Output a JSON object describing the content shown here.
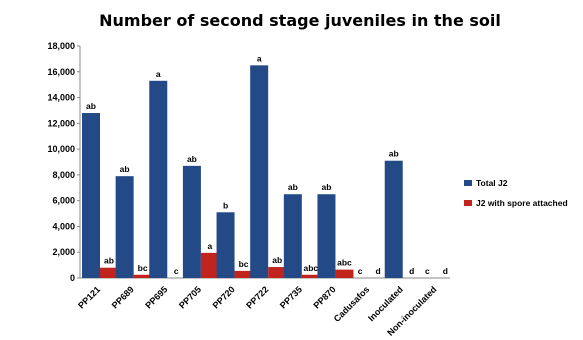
{
  "chart_data": {
    "type": "bar",
    "title": "Number of second stage juveniles in the soil",
    "categories": [
      "PP121",
      "PP689",
      "PP695",
      "PP705",
      "PP720",
      "PP722",
      "PP735",
      "PP870",
      "Cadusafos",
      "Inoculated",
      "Non-inoculated"
    ],
    "series": [
      {
        "name": "Total J2",
        "color": "#234a86",
        "values": [
          12800,
          7900,
          15300,
          8700,
          5100,
          16500,
          6500,
          6500,
          0,
          9100,
          0
        ],
        "labels": [
          "ab",
          "ab",
          "a",
          "ab",
          "b",
          "a",
          "ab",
          "ab",
          "c",
          "ab",
          "c"
        ]
      },
      {
        "name": "J2 with spore attached",
        "color": "#c0241d",
        "values": [
          800,
          250,
          0,
          1950,
          550,
          850,
          250,
          650,
          0,
          0,
          0
        ],
        "labels": [
          "ab",
          "bc",
          "c",
          "a",
          "bc",
          "ab",
          "abc",
          "abc",
          "d",
          "d",
          "d"
        ]
      }
    ],
    "ylim": [
      0,
      18000
    ],
    "yticks": [
      "0",
      "2,000",
      "4,000",
      "6,000",
      "8,000",
      "10,000",
      "12,000",
      "14,000",
      "16,000",
      "18,000"
    ],
    "grid": false,
    "legend_position": "right"
  }
}
